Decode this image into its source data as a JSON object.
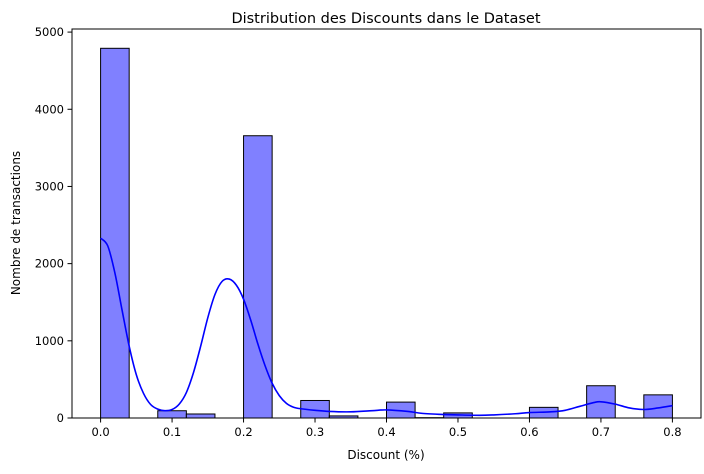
{
  "chart_data": {
    "type": "bar",
    "subtype": "histogram with KDE",
    "title": "Distribution des Discounts dans le Dataset",
    "xlabel": "Discount (%)",
    "ylabel": "Nombre de transactions",
    "xlim": [
      -0.04,
      0.84
    ],
    "ylim": [
      0,
      5040
    ],
    "xticks": [
      0.0,
      0.1,
      0.2,
      0.3,
      0.4,
      0.5,
      0.6,
      0.7,
      0.8
    ],
    "xtick_labels": [
      "0.0",
      "0.1",
      "0.2",
      "0.3",
      "0.4",
      "0.5",
      "0.6",
      "0.7",
      "0.8"
    ],
    "yticks": [
      0,
      1000,
      2000,
      3000,
      4000,
      5000
    ],
    "ytick_labels": [
      "0",
      "1000",
      "2000",
      "3000",
      "4000",
      "5000"
    ],
    "bin_width": 0.04,
    "bins": [
      {
        "x0": 0.0,
        "value": 4790
      },
      {
        "x0": 0.04,
        "value": 0
      },
      {
        "x0": 0.08,
        "value": 94
      },
      {
        "x0": 0.12,
        "value": 52
      },
      {
        "x0": 0.16,
        "value": 0
      },
      {
        "x0": 0.2,
        "value": 3657
      },
      {
        "x0": 0.24,
        "value": 0
      },
      {
        "x0": 0.28,
        "value": 227
      },
      {
        "x0": 0.32,
        "value": 27
      },
      {
        "x0": 0.36,
        "value": 0
      },
      {
        "x0": 0.4,
        "value": 206
      },
      {
        "x0": 0.44,
        "value": 4
      },
      {
        "x0": 0.48,
        "value": 66
      },
      {
        "x0": 0.52,
        "value": 0
      },
      {
        "x0": 0.56,
        "value": 0
      },
      {
        "x0": 0.6,
        "value": 138
      },
      {
        "x0": 0.64,
        "value": 0
      },
      {
        "x0": 0.68,
        "value": 418
      },
      {
        "x0": 0.72,
        "value": 0
      },
      {
        "x0": 0.76,
        "value": 300
      }
    ],
    "kde": {
      "x": [
        0.0,
        0.01,
        0.02,
        0.03,
        0.04,
        0.05,
        0.06,
        0.07,
        0.08,
        0.09,
        0.1,
        0.11,
        0.12,
        0.13,
        0.14,
        0.15,
        0.16,
        0.17,
        0.18,
        0.19,
        0.2,
        0.21,
        0.22,
        0.23,
        0.24,
        0.25,
        0.26,
        0.27,
        0.28,
        0.3,
        0.32,
        0.35,
        0.38,
        0.4,
        0.43,
        0.45,
        0.48,
        0.5,
        0.53,
        0.55,
        0.58,
        0.6,
        0.63,
        0.65,
        0.67,
        0.69,
        0.7,
        0.72,
        0.74,
        0.76,
        0.78,
        0.8
      ],
      "y": [
        2330,
        2230,
        1880,
        1400,
        930,
        560,
        320,
        175,
        115,
        95,
        110,
        180,
        330,
        590,
        930,
        1300,
        1600,
        1770,
        1800,
        1720,
        1540,
        1270,
        960,
        680,
        450,
        290,
        190,
        140,
        120,
        100,
        85,
        80,
        95,
        105,
        85,
        60,
        45,
        40,
        35,
        40,
        55,
        70,
        80,
        100,
        150,
        200,
        210,
        180,
        130,
        110,
        130,
        160
      ]
    },
    "colors": {
      "bar_fill": "#8080ff",
      "bar_edge": "#000000",
      "kde_line": "#0000ff"
    },
    "grid": false,
    "legend": "none"
  }
}
